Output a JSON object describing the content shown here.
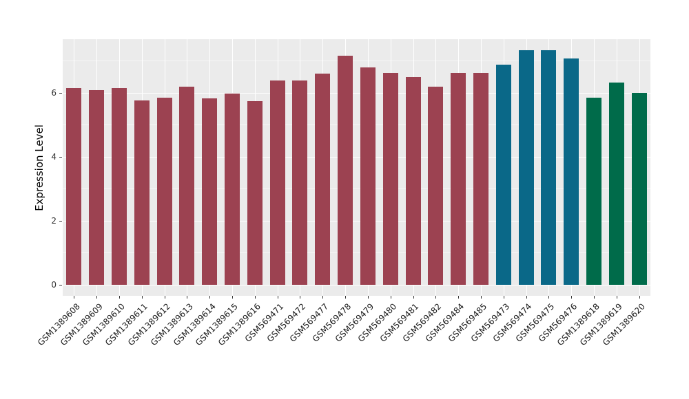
{
  "chart_data": {
    "type": "bar",
    "title": "",
    "xlabel": "",
    "ylabel": "Expression Level",
    "ylim": [
      0,
      7.7
    ],
    "yticks": [
      0,
      2,
      4,
      6
    ],
    "ytick_labels": [
      "0",
      "2",
      "4",
      "6"
    ],
    "minor_gridlines": [
      1,
      3,
      5,
      7
    ],
    "grid": "on",
    "legend": "none",
    "panel_background": "#EBEBEB",
    "major_gridline_color": "#FFFFFF",
    "minor_gridline_color": "rgba(255,255,255,0.6)",
    "palette": {
      "maroon": "#9C4251",
      "teal": "#0A6888",
      "green": "#006B4A"
    },
    "categories": [
      "GSM1389608",
      "GSM1389609",
      "GSM1389610",
      "GSM1389611",
      "GSM1389612",
      "GSM1389613",
      "GSM1389614",
      "GSM1389615",
      "GSM1389616",
      "GSM569471",
      "GSM569472",
      "GSM569477",
      "GSM569478",
      "GSM569479",
      "GSM569480",
      "GSM569481",
      "GSM569482",
      "GSM569484",
      "GSM569485",
      "GSM569473",
      "GSM569474",
      "GSM569475",
      "GSM569476",
      "GSM1389618",
      "GSM1389619",
      "GSM1389620"
    ],
    "values": [
      6.13,
      6.07,
      6.14,
      5.76,
      5.83,
      6.18,
      5.81,
      5.96,
      5.73,
      6.37,
      6.37,
      6.6,
      7.16,
      6.79,
      6.61,
      6.48,
      6.18,
      6.62,
      6.62,
      6.88,
      7.32,
      7.32,
      7.07,
      5.84,
      6.31,
      6.0
    ],
    "bar_groups": [
      "maroon",
      "maroon",
      "maroon",
      "maroon",
      "maroon",
      "maroon",
      "maroon",
      "maroon",
      "maroon",
      "maroon",
      "maroon",
      "maroon",
      "maroon",
      "maroon",
      "maroon",
      "maroon",
      "maroon",
      "maroon",
      "maroon",
      "teal",
      "teal",
      "teal",
      "teal",
      "green",
      "green",
      "green"
    ]
  }
}
